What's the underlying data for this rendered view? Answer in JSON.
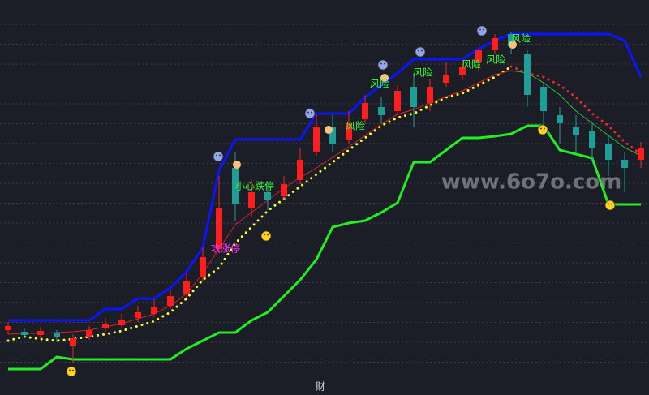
{
  "chart_data": {
    "type": "candlestick",
    "ylim": [
      0,
      487
    ],
    "up_color": "#ff1e1e",
    "down_color": "#1f9e98",
    "open": [
      80,
      78,
      74,
      77,
      60,
      72,
      82,
      86,
      95,
      100,
      110,
      125,
      145,
      180,
      280,
      230,
      250,
      245,
      265,
      300,
      330,
      315,
      340,
      355,
      350,
      380,
      360,
      385,
      395,
      410,
      425,
      445,
      420,
      380,
      345,
      330,
      325,
      310,
      290,
      290
    ],
    "close": [
      85,
      74,
      79,
      72,
      70,
      80,
      88,
      92,
      102,
      108,
      122,
      140,
      170,
      230,
      235,
      250,
      240,
      260,
      290,
      330,
      310,
      335,
      360,
      345,
      375,
      355,
      380,
      395,
      405,
      425,
      440,
      430,
      370,
      350,
      335,
      320,
      305,
      290,
      280,
      305
    ],
    "high": [
      90,
      82,
      84,
      80,
      75,
      85,
      95,
      100,
      110,
      118,
      130,
      150,
      182,
      270,
      300,
      265,
      262,
      270,
      305,
      347,
      345,
      350,
      370,
      368,
      382,
      397,
      390,
      410,
      414,
      427,
      445,
      447,
      425,
      385,
      355,
      345,
      335,
      320,
      300,
      312
    ],
    "low": [
      75,
      70,
      70,
      65,
      40,
      68,
      78,
      82,
      90,
      96,
      106,
      120,
      140,
      175,
      215,
      220,
      228,
      240,
      260,
      295,
      300,
      310,
      335,
      335,
      345,
      330,
      350,
      380,
      388,
      400,
      420,
      420,
      355,
      330,
      310,
      300,
      290,
      270,
      250,
      280
    ],
    "series": [
      {
        "color": "#0a14ff",
        "style": "solid",
        "width": 3,
        "values": [
          92,
          92,
          92,
          92,
          92,
          92,
          106,
          106,
          119,
          119,
          132,
          152,
          182,
          277,
          315,
          315,
          315,
          315,
          315,
          347,
          347,
          347,
          367,
          382,
          397,
          414,
          414,
          414,
          414,
          427,
          437,
          445,
          445,
          445,
          445,
          445,
          445,
          445,
          437,
          392
        ]
      },
      {
        "color": "#22ee22",
        "style": "solid",
        "width": 3,
        "values": [
          32,
          32,
          32,
          47,
          44,
          44,
          44,
          44,
          44,
          44,
          44,
          57,
          67,
          77,
          77,
          92,
          102,
          122,
          142,
          167,
          207,
          212,
          215,
          225,
          237,
          287,
          287,
          302,
          317,
          317,
          319,
          322,
          332,
          332,
          302,
          297,
          292,
          235,
          235,
          235
        ]
      },
      {
        "color": "#ffff33",
        "style": "dotted",
        "width": 3,
        "values": [
          67,
          72,
          69,
          67,
          69,
          72,
          75,
          79,
          85,
          91,
          102,
          119,
          142,
          157,
          187,
          207,
          227,
          242,
          257,
          272,
          287,
          302,
          317,
          332,
          342,
          347,
          357,
          367,
          372,
          382,
          392,
          405,
          null,
          null,
          null,
          null,
          null,
          null,
          null,
          null
        ]
      },
      {
        "color": "#ff2020",
        "style": "dotted",
        "width": 3,
        "values": [
          null,
          null,
          null,
          null,
          null,
          null,
          null,
          null,
          null,
          null,
          null,
          null,
          null,
          null,
          null,
          null,
          null,
          null,
          null,
          null,
          null,
          null,
          null,
          null,
          null,
          null,
          null,
          null,
          null,
          null,
          null,
          405,
          397,
          392,
          382,
          367,
          347,
          332,
          312,
          297
        ]
      },
      {
        "color": "#e02020",
        "style": "solid",
        "width": 1,
        "values": [
          75,
          76,
          76,
          77,
          78,
          80,
          84,
          88,
          94,
          100,
          110,
          125,
          150,
          180,
          210,
          225,
          240,
          255,
          268,
          280,
          293,
          306,
          320,
          334,
          346,
          352,
          360,
          368,
          375,
          385,
          395,
          400,
          null,
          null,
          null,
          null,
          null,
          null,
          null,
          null
        ]
      },
      {
        "color": "#30c030",
        "style": "solid",
        "width": 1,
        "values": [
          null,
          null,
          null,
          null,
          null,
          null,
          null,
          null,
          null,
          null,
          null,
          null,
          null,
          null,
          null,
          null,
          null,
          null,
          null,
          null,
          null,
          null,
          null,
          null,
          null,
          null,
          null,
          null,
          null,
          null,
          null,
          400,
          397,
          385,
          370,
          350,
          335,
          320,
          305,
          295
        ]
      }
    ]
  },
  "annotations": [
    {
      "text": "攻涨停",
      "color": "#ff33ff"
    },
    {
      "text": "小心跌停",
      "color": "#33ff33"
    },
    {
      "text": "风险",
      "color": "#33ff33"
    },
    {
      "text": "风险",
      "color": "#33ff33"
    },
    {
      "text": "风险",
      "color": "#33ff33"
    },
    {
      "text": "风险",
      "color": "#33ff33"
    },
    {
      "text": "风险",
      "color": "#33ff33"
    },
    {
      "text": "风险",
      "color": "#33ff33"
    }
  ],
  "watermark": "www.6o7o.com",
  "footer": "财"
}
